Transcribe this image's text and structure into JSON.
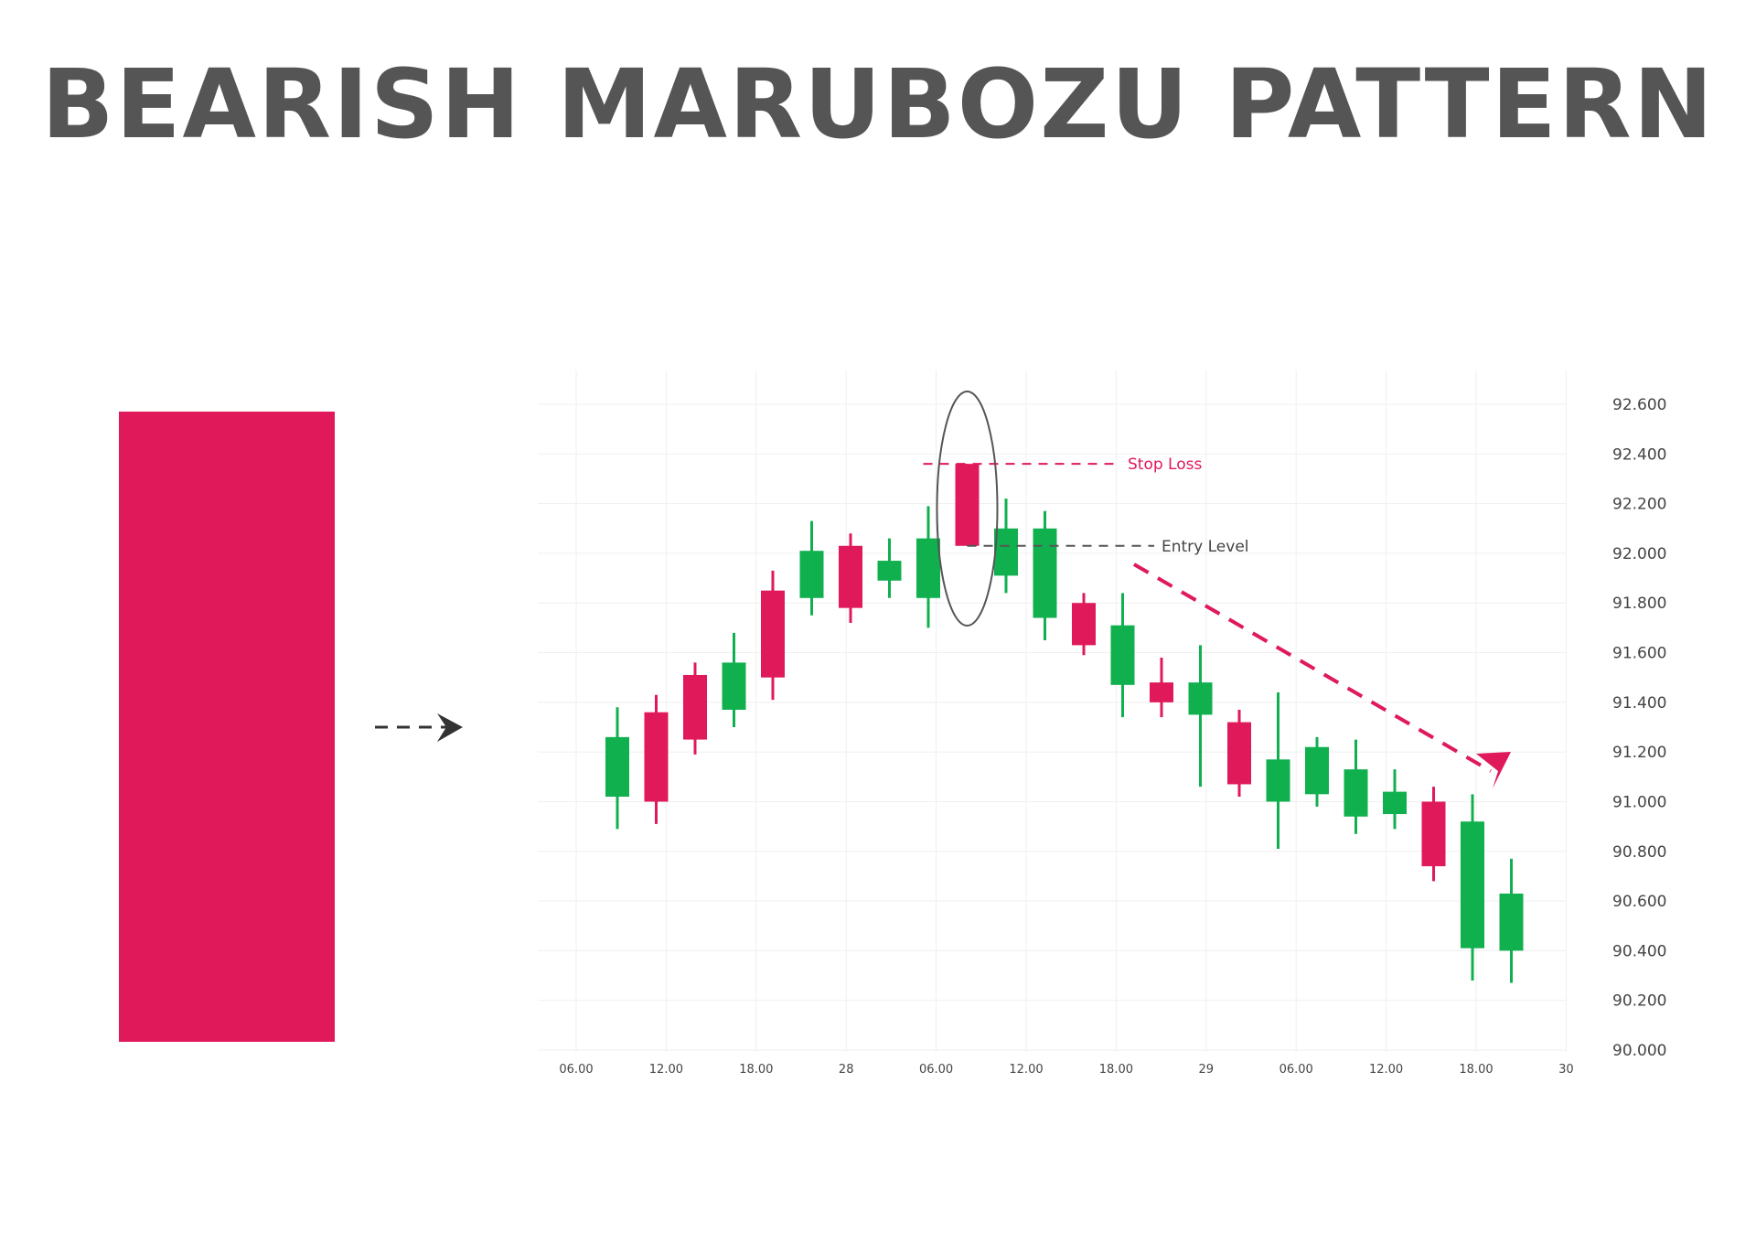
{
  "page": {
    "title": "BEARISH MARUBOZU PATTERN"
  },
  "colors": {
    "bull": "#10b04f",
    "bear": "#e0195a",
    "text": "#555555",
    "grid": "#efefef",
    "arrow": "#333333"
  },
  "chart_data": {
    "type": "candlestick",
    "title": "BEARISH MARUBOZU PATTERN",
    "ylim": [
      90000,
      92600
    ],
    "yticks": [
      "92.600",
      "92.400",
      "92.200",
      "92.000",
      "91.800",
      "91.600",
      "91.400",
      "91.200",
      "91.000",
      "90.800",
      "90.600",
      "90.400",
      "90.200",
      "90.000"
    ],
    "ytick_values": [
      92600,
      92400,
      92200,
      92000,
      91800,
      91600,
      91400,
      91200,
      91000,
      90800,
      90600,
      90400,
      90200,
      90000
    ],
    "xticks": [
      "06.00",
      "12.00",
      "18.00",
      "28",
      "06.00",
      "12.00",
      "18.00",
      "29",
      "06.00",
      "12.00",
      "18.00",
      "30"
    ],
    "grid": true,
    "example_candle": {
      "label": "Bearish Marubozu",
      "direction": "bear"
    },
    "candles": [
      {
        "open": 91020,
        "high": 91380,
        "low": 90890,
        "close": 91260
      },
      {
        "open": 91360,
        "high": 91430,
        "low": 90910,
        "close": 91000
      },
      {
        "open": 91510,
        "high": 91560,
        "low": 91190,
        "close": 91250
      },
      {
        "open": 91370,
        "high": 91680,
        "low": 91300,
        "close": 91560
      },
      {
        "open": 91850,
        "high": 91930,
        "low": 91410,
        "close": 91500
      },
      {
        "open": 91820,
        "high": 92130,
        "low": 91750,
        "close": 92010
      },
      {
        "open": 92030,
        "high": 92080,
        "low": 91720,
        "close": 91780
      },
      {
        "open": 91890,
        "high": 92060,
        "low": 91820,
        "close": 91970
      },
      {
        "open": 91820,
        "high": 92190,
        "low": 91700,
        "close": 92060
      },
      {
        "open": 92360,
        "high": 92360,
        "low": 92030,
        "close": 92030
      },
      {
        "open": 91910,
        "high": 92220,
        "low": 91840,
        "close": 92100
      },
      {
        "open": 91740,
        "high": 92170,
        "low": 91650,
        "close": 92100
      },
      {
        "open": 91800,
        "high": 91840,
        "low": 91590,
        "close": 91630
      },
      {
        "open": 91470,
        "high": 91840,
        "low": 91340,
        "close": 91710
      },
      {
        "open": 91480,
        "high": 91580,
        "low": 91340,
        "close": 91400
      },
      {
        "open": 91350,
        "high": 91630,
        "low": 91060,
        "close": 91480
      },
      {
        "open": 91320,
        "high": 91370,
        "low": 91020,
        "close": 91070
      },
      {
        "open": 91000,
        "high": 91440,
        "low": 90810,
        "close": 91170
      },
      {
        "open": 91030,
        "high": 91260,
        "low": 90980,
        "close": 91220
      },
      {
        "open": 90940,
        "high": 91250,
        "low": 90870,
        "close": 91130
      },
      {
        "open": 90950,
        "high": 91130,
        "low": 90890,
        "close": 91040
      },
      {
        "open": 91000,
        "high": 91060,
        "low": 90680,
        "close": 90740
      },
      {
        "open": 90410,
        "high": 91030,
        "low": 90280,
        "close": 90920
      },
      {
        "open": 90400,
        "high": 90770,
        "low": 90270,
        "close": 90630
      }
    ],
    "highlight_index": 9,
    "annotations": [
      {
        "label": "Stop Loss",
        "value": 92360
      },
      {
        "label": "Entry Level",
        "value": 92030
      }
    ]
  }
}
